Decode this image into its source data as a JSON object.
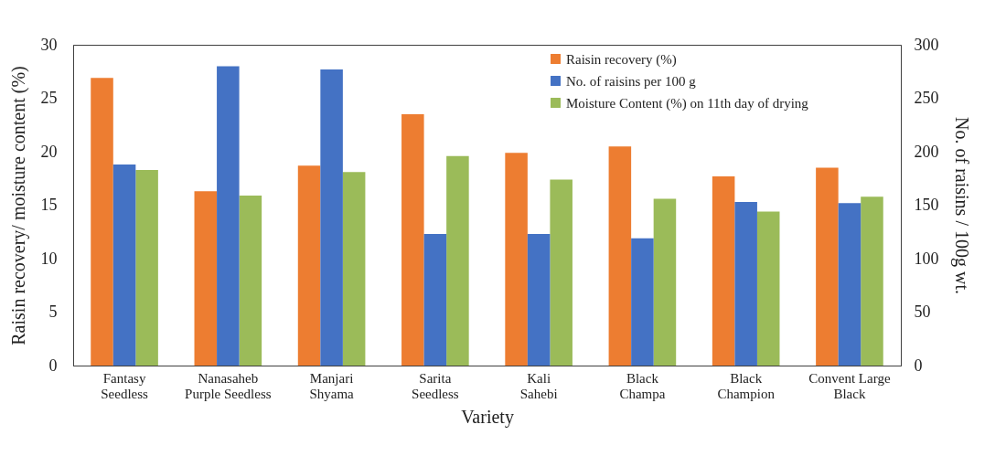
{
  "chart_data": {
    "type": "bar",
    "xlabel": "Variety",
    "ylabel": "Raisin recovery/ moisture content (%)",
    "y2label": "No. of raisins / 100g wt.",
    "categories": [
      "Fantasy\nSeedless",
      "Nanasaheb\nPurple Seedless",
      "Manjari\nShyama",
      "Sarita\nSeedless",
      "Kali\nSahebi",
      "Black\nChampa",
      "Black\nChampion",
      "Convent Large\nBlack"
    ],
    "series": [
      {
        "name": "Raisin recovery (%)",
        "color": "#ed7d31",
        "values": [
          26.9,
          16.3,
          18.7,
          23.5,
          19.9,
          20.5,
          17.7,
          18.5
        ]
      },
      {
        "name": "No. of raisins per 100 g",
        "color": "#4472c4",
        "axis": "y2",
        "values": [
          188,
          280,
          277,
          123,
          123,
          119,
          153,
          152
        ]
      },
      {
        "name": "Moisture Content (%) on 11th day of drying",
        "color": "#9bbb59",
        "values": [
          18.3,
          15.9,
          18.1,
          19.6,
          17.4,
          15.6,
          14.4,
          15.8
        ]
      }
    ],
    "ylim": [
      0,
      30
    ],
    "yticks": [
      0,
      5,
      10,
      15,
      20,
      25,
      30
    ],
    "y2lim": [
      0,
      300
    ],
    "y2ticks": [
      0,
      50,
      100,
      150,
      200,
      250,
      300
    ],
    "legend": "top right"
  }
}
